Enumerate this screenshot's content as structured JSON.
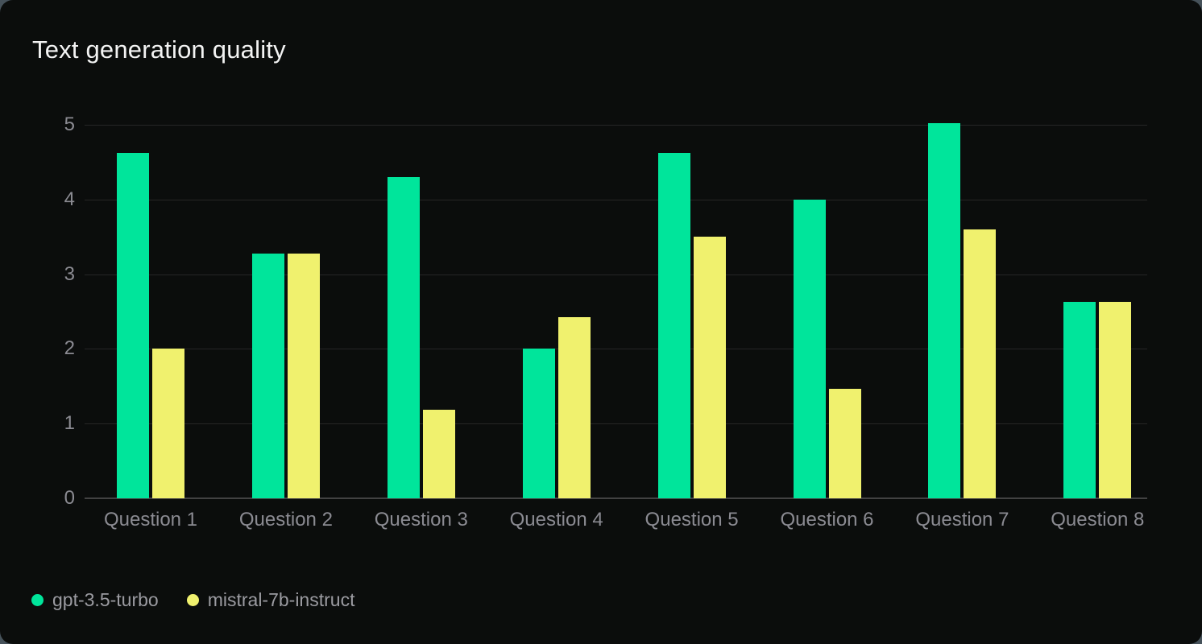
{
  "colors": {
    "page_background": "#46525a",
    "card_background": "#0b0d0c",
    "title_text": "#f3f3f3",
    "axis_text": "#8b8b92",
    "legend_text": "#9b9ba1",
    "gridline": "#262626",
    "baseline": "#424242",
    "series_green": "#00e59b",
    "series_yellow": "#f0f16e"
  },
  "chart_data": {
    "type": "bar",
    "title": "Text generation quality",
    "categories": [
      "Question 1",
      "Question 2",
      "Question 3",
      "Question 4",
      "Question 5",
      "Question 6",
      "Question 7",
      "Question 8"
    ],
    "series": [
      {
        "name": "gpt-3.5-turbo",
        "color": "#00e59b",
        "values": [
          4.62,
          3.28,
          4.3,
          2.0,
          4.62,
          4.0,
          5.02,
          2.63
        ]
      },
      {
        "name": "mistral-7b-instruct",
        "color": "#f0f16e",
        "values": [
          2.0,
          3.28,
          1.18,
          2.42,
          3.5,
          1.47,
          3.6,
          2.63
        ]
      }
    ],
    "xlabel": "",
    "ylabel": "",
    "ylim": [
      0,
      5
    ],
    "yticks": [
      0,
      1,
      2,
      3,
      4,
      5
    ],
    "grid": true,
    "legend_position": "bottom-left"
  }
}
